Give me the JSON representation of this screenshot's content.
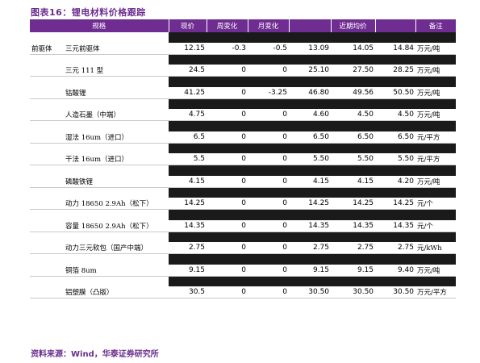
{
  "title": "图表16：锂电材料价格跟踪",
  "headers": [
    "规格",
    "现价",
    "周变化",
    "月变化",
    "",
    "近期均价",
    "",
    "备注"
  ],
  "rows": [
    {
      "cat": "前驱体",
      "name": "三元前驱体",
      "price": "12.15",
      "week": "-0.3",
      "month": "-0.5",
      "a1": "13.09",
      "a2": "14.05",
      "a3": "14.84",
      "unit": "万元/吨"
    },
    {
      "cat": "",
      "name": "三元 111 型",
      "price": "24.5",
      "week": "0",
      "month": "0",
      "a1": "25.10",
      "a2": "27.50",
      "a3": "28.25",
      "unit": "万元/吨"
    },
    {
      "cat": "",
      "name": "钴酸锂",
      "price": "41.25",
      "week": "0",
      "month": "-3.25",
      "a1": "46.80",
      "a2": "49.56",
      "a3": "50.50",
      "unit": "万元/吨"
    },
    {
      "cat": "",
      "name": "人造石墨（中端）",
      "price": "4.75",
      "week": "0",
      "month": "0",
      "a1": "4.60",
      "a2": "4.50",
      "a3": "4.50",
      "unit": "万元/吨"
    },
    {
      "cat": "",
      "name": "湿法 16um（进口）",
      "price": "6.5",
      "week": "0",
      "month": "0",
      "a1": "6.50",
      "a2": "6.50",
      "a3": "6.50",
      "unit": "元/平方"
    },
    {
      "cat": "",
      "name": "干法 16um（进口）",
      "price": "5.5",
      "week": "0",
      "month": "0",
      "a1": "5.50",
      "a2": "5.50",
      "a3": "5.50",
      "unit": "元/平方"
    },
    {
      "cat": "",
      "name": "磷酸铁锂",
      "price": "4.15",
      "week": "0",
      "month": "0",
      "a1": "4.15",
      "a2": "4.15",
      "a3": "4.20",
      "unit": "万元/吨"
    },
    {
      "cat": "",
      "name": "动力 18650 2.9Ah（松下）",
      "price": "14.25",
      "week": "0",
      "month": "0",
      "a1": "14.25",
      "a2": "14.25",
      "a3": "14.25",
      "unit": "元/个"
    },
    {
      "cat": "",
      "name": "容量 18650 2.9Ah（松下）",
      "price": "14.35",
      "week": "0",
      "month": "0",
      "a1": "14.35",
      "a2": "14.35",
      "a3": "14.35",
      "unit": "元/个"
    },
    {
      "cat": "",
      "name": "动力三元软包（国产中端）",
      "price": "2.75",
      "week": "0",
      "month": "0",
      "a1": "2.75",
      "a2": "2.75",
      "a3": "2.75",
      "unit": "元/kWh"
    },
    {
      "cat": "",
      "name": "铜箔 8um",
      "price": "9.15",
      "week": "0",
      "month": "0",
      "a1": "9.15",
      "a2": "9.15",
      "a3": "9.40",
      "unit": "万元/吨"
    },
    {
      "cat": "",
      "name": "铝塑膜（凸版）",
      "price": "30.5",
      "week": "0",
      "month": "0",
      "a1": "30.50",
      "a2": "30.50",
      "a3": "30.50",
      "unit": "万元/平方"
    }
  ],
  "source": "资料来源：Wind，华泰证券研究所"
}
